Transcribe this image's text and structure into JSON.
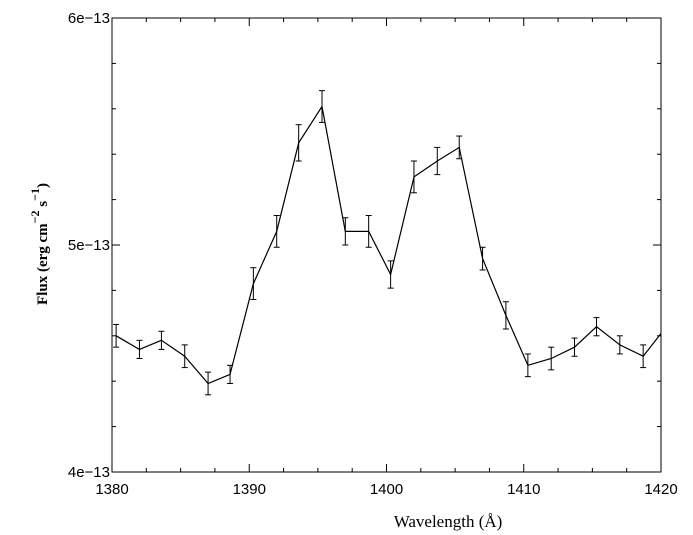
{
  "chart_data": {
    "type": "line",
    "xlabel": "Wavelength (Å)",
    "ylabel": "Flux (erg  cm",
    "ylabel_exp1": "−2",
    "ylabel_mid": " s",
    "ylabel_exp2": "−1",
    "ylabel_end": ")",
    "xlim": [
      1380,
      1420
    ],
    "ylim": [
      4e-13,
      6e-13
    ],
    "x_ticks": [
      1380,
      1390,
      1400,
      1410,
      1420
    ],
    "x_tick_labels": [
      "1380",
      "1390",
      "1400",
      "1410",
      "1420"
    ],
    "y_ticks": [
      4e-13,
      5e-13,
      6e-13
    ],
    "y_tick_labels": [
      "4e−13",
      "5e−13",
      "6e−13"
    ],
    "grid": false,
    "series": [
      {
        "x": [
          1380.3,
          1382.0,
          1383.6,
          1385.3,
          1387.0,
          1388.6,
          1390.3,
          1392.0,
          1393.6,
          1395.3,
          1397.0,
          1398.7,
          1400.3,
          1402.0,
          1403.7,
          1405.3,
          1407.0,
          1408.7,
          1410.3,
          1412.0,
          1413.7,
          1415.3,
          1417.0,
          1418.7,
          1420.0
        ],
        "y": [
          4.6e-13,
          4.54e-13,
          4.58e-13,
          4.51e-13,
          4.39e-13,
          4.43e-13,
          4.83e-13,
          5.06e-13,
          5.45e-13,
          5.61e-13,
          5.06e-13,
          5.06e-13,
          4.87e-13,
          5.3e-13,
          5.37e-13,
          5.43e-13,
          4.94e-13,
          4.69e-13,
          4.47e-13,
          4.5e-13,
          4.55e-13,
          4.64e-13,
          4.56e-13,
          4.51e-13,
          4.61e-13
        ],
        "yerr": [
          5e-15,
          4e-15,
          4e-15,
          5e-15,
          5e-15,
          4e-15,
          7e-15,
          7e-15,
          8e-15,
          7e-15,
          6e-15,
          7e-15,
          6e-15,
          7e-15,
          6e-15,
          5e-15,
          5e-15,
          6e-15,
          5e-15,
          5e-15,
          4e-15,
          4e-15,
          4e-15,
          5e-15,
          0
        ]
      }
    ]
  }
}
